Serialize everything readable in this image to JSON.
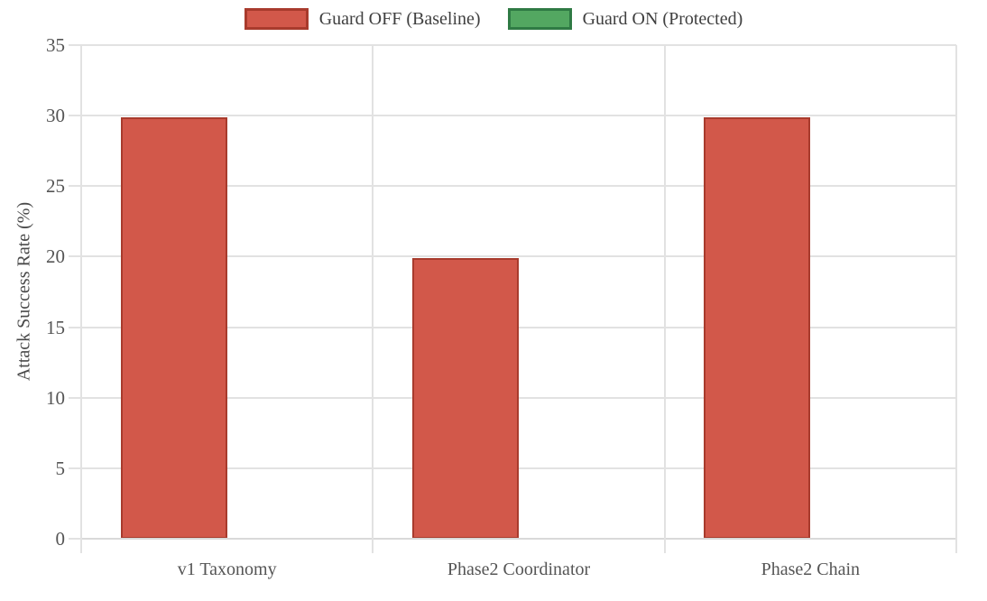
{
  "chart_data": {
    "type": "bar",
    "title": "",
    "categories": [
      "v1 Taxonomy",
      "Phase2 Coordinator",
      "Phase2 Chain"
    ],
    "series": [
      {
        "name": "Guard OFF (Baseline)",
        "values": [
          29.9,
          19.9,
          29.9
        ],
        "fill": "#d2584a",
        "edge": "#a83b2d"
      },
      {
        "name": "Guard ON (Protected)",
        "values": [
          0,
          0,
          0
        ],
        "fill": "#53a761",
        "edge": "#2f7a44"
      }
    ],
    "xlabel": "",
    "ylabel": "Attack Success Rate (%)",
    "ylim": [
      0,
      35
    ],
    "yticks": [
      0,
      5,
      10,
      15,
      20,
      25,
      30,
      35
    ],
    "legend_position": "top",
    "grid": true,
    "colors": {
      "gridline": "#e2e2e2",
      "axis_line": "#d9d9d9",
      "tick_text": "#555555",
      "legend_text": "#3f3f3f",
      "ylabel_text": "#4a4a4a",
      "background": "#ffffff"
    }
  }
}
